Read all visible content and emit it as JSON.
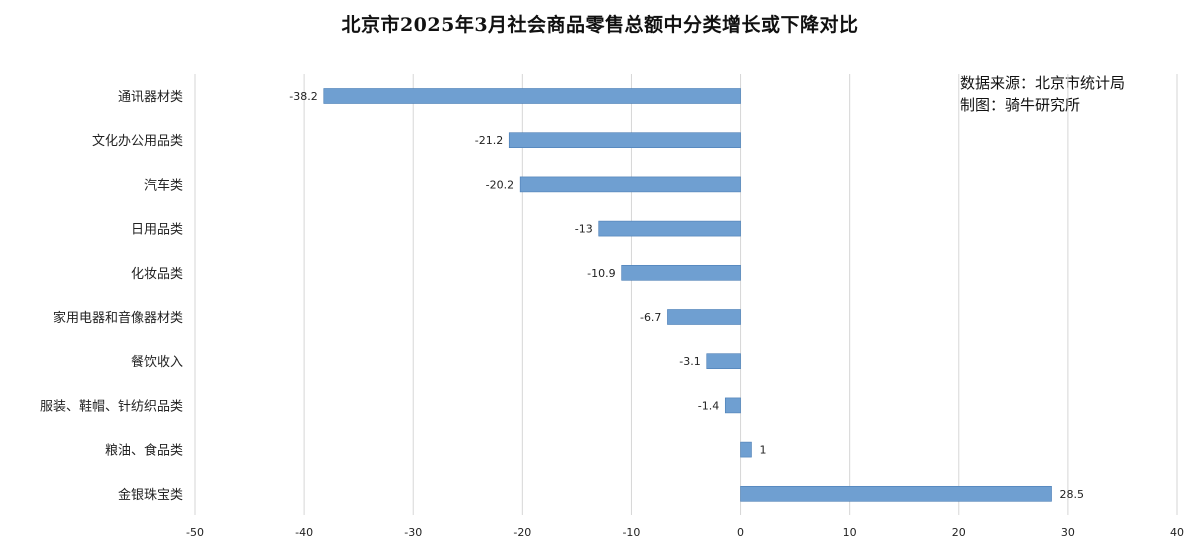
{
  "chart_data": {
    "type": "bar",
    "orientation": "horizontal",
    "title": "北京市2025年3月社会商品零售总额中分类增长或下降对比",
    "annotation": [
      "数据来源：北京市统计局",
      "制图：骑牛研究所"
    ],
    "categories": [
      "通讯器材类",
      "文化办公用品类",
      "汽车类",
      "日用品类",
      "化妆品类",
      "家用电器和音像器材类",
      "餐饮收入",
      "服装、鞋帽、针纺织品类",
      "粮油、食品类",
      "金银珠宝类"
    ],
    "values": [
      -38.2,
      -21.2,
      -20.2,
      -13,
      -10.9,
      -6.7,
      -3.1,
      -1.4,
      1,
      28.5
    ],
    "data_labels": [
      "-38.2",
      "-21.2",
      "-20.2",
      "-13",
      "-10.9",
      "-6.7",
      "-3.1",
      "-1.4",
      "1",
      "28.5"
    ],
    "xlim": [
      -50,
      40
    ],
    "xticks": [
      -50,
      -40,
      -30,
      -20,
      -10,
      0,
      10,
      20,
      30,
      40
    ],
    "xtick_labels": [
      "-50",
      "-40",
      "-30",
      "-20",
      "-10",
      "0",
      "10",
      "20",
      "30",
      "40"
    ],
    "xlabel": "",
    "ylabel": "",
    "grid": "vertical",
    "legend": "none",
    "bar_color": "#6f9fd1",
    "bar_stroke": "#4a7db5",
    "grid_color": "#d6d6d6",
    "text_color": "#222222"
  }
}
